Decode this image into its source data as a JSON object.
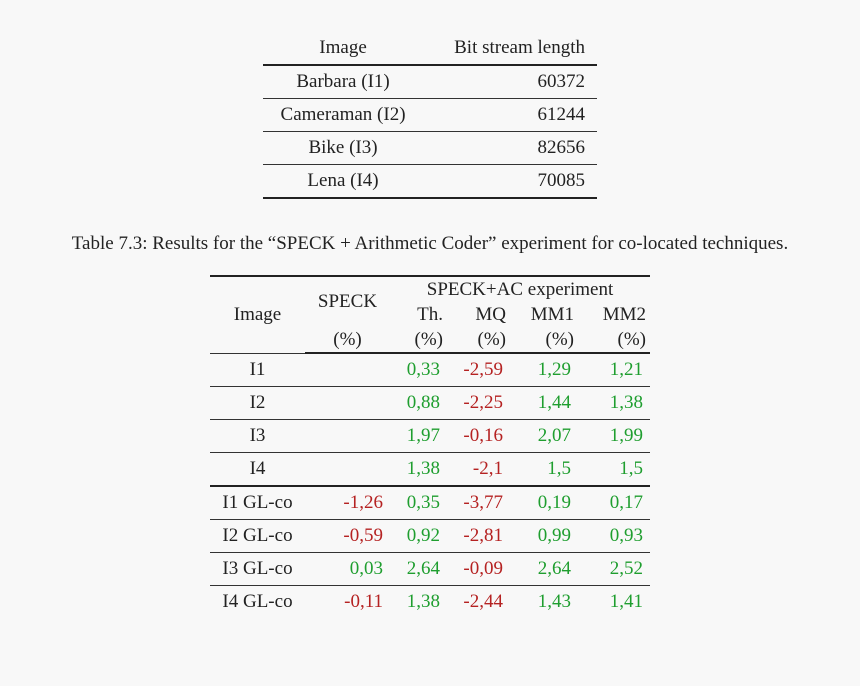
{
  "table1": {
    "header": [
      "Image",
      "Bit stream length"
    ],
    "rows": [
      [
        "Barbara (I1)",
        "60372"
      ],
      [
        "Cameraman (I2)",
        "61244"
      ],
      [
        "Bike (I3)",
        "82656"
      ],
      [
        "Lena (I4)",
        "70085"
      ]
    ]
  },
  "caption": "Table 7.3: Results for the “SPECK + Arithmetic Coder” experiment for co-located techniques.",
  "table2": {
    "header": {
      "image": "Image",
      "speck": "SPECK",
      "group": "SPECK+AC experiment",
      "columns": [
        "Th.",
        "MQ",
        "MM1",
        "MM2"
      ],
      "unit": "(%)"
    },
    "rows": [
      [
        "I1",
        null,
        "0,33",
        "-2,59",
        "1,29",
        "1,21"
      ],
      [
        "I2",
        null,
        "0,88",
        "-2,25",
        "1,44",
        "1,38"
      ],
      [
        "I3",
        null,
        "1,97",
        "-0,16",
        "2,07",
        "1,99"
      ],
      [
        "I4",
        null,
        "1,38",
        "-2,1",
        "1,5",
        "1,5"
      ],
      [
        "I1 GL-co",
        "-1,26",
        "0,35",
        "-3,77",
        "0,19",
        "0,17"
      ],
      [
        "I2 GL-co",
        "-0,59",
        "0,92",
        "-2,81",
        "0,99",
        "0,93"
      ],
      [
        "I3 GL-co",
        "0,03",
        "2,64",
        "-0,09",
        "2,64",
        "2,52"
      ],
      [
        "I4 GL-co",
        "-0,11",
        "1,38",
        "-2,44",
        "1,43",
        "1,41"
      ]
    ]
  },
  "colors": {
    "positive": "#1f9e2f",
    "negative": "#b52222"
  }
}
